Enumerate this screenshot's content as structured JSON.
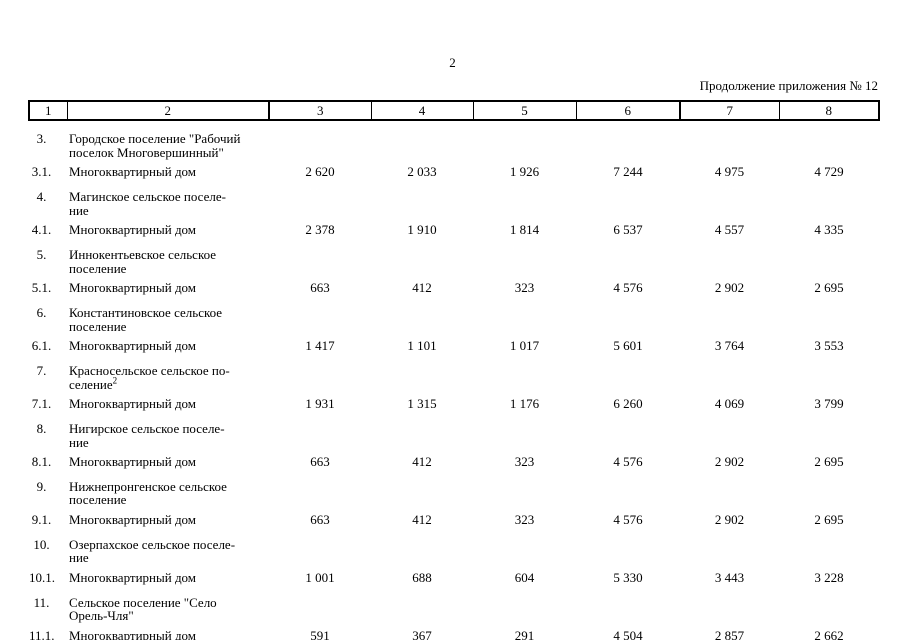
{
  "page": {
    "number": "2",
    "continuation_note": "Продолжение приложения № 12"
  },
  "table": {
    "column_headers": [
      "1",
      "2",
      "3",
      "4",
      "5",
      "6",
      "7",
      "8"
    ],
    "rows": [
      {
        "type": "section",
        "num": "3.",
        "name_lines": [
          "Городское поселение \"Рабочий",
          "поселок Многовершинный\""
        ]
      },
      {
        "type": "data",
        "num": "3.1.",
        "name_lines": [
          "Многоквартирный дом"
        ],
        "values": [
          "2 620",
          "2 033",
          "1 926",
          "7 244",
          "4 975",
          "4 729"
        ]
      },
      {
        "type": "section",
        "num": "4.",
        "name_lines": [
          "Магинское сельское поселе-",
          "ние"
        ]
      },
      {
        "type": "data",
        "num": "4.1.",
        "name_lines": [
          "Многоквартирный дом"
        ],
        "values": [
          "2 378",
          "1 910",
          "1 814",
          "6 537",
          "4 557",
          "4 335"
        ]
      },
      {
        "type": "section",
        "num": "5.",
        "name_lines": [
          "Иннокентьевское сельское",
          "поселение"
        ]
      },
      {
        "type": "data",
        "num": "5.1.",
        "name_lines": [
          "Многоквартирный дом"
        ],
        "values": [
          "663",
          "412",
          "323",
          "4 576",
          "2 902",
          "2 695"
        ]
      },
      {
        "type": "section",
        "num": "6.",
        "name_lines": [
          "Константиновское сельское",
          "поселение"
        ]
      },
      {
        "type": "data",
        "num": "6.1.",
        "name_lines": [
          "Многоквартирный дом"
        ],
        "values": [
          "1 417",
          "1 101",
          "1 017",
          "5 601",
          "3 764",
          "3 553"
        ]
      },
      {
        "type": "section",
        "num": "7.",
        "name_lines": [
          "Красносельское сельское по-",
          "селение"
        ],
        "name_superscript": "2"
      },
      {
        "type": "data",
        "num": "7.1.",
        "name_lines": [
          "Многоквартирный дом"
        ],
        "values": [
          "1 931",
          "1 315",
          "1 176",
          "6 260",
          "4 069",
          "3 799"
        ]
      },
      {
        "type": "section",
        "num": "8.",
        "name_lines": [
          "Нигирское сельское поселе-",
          "ние"
        ]
      },
      {
        "type": "data",
        "num": "8.1.",
        "name_lines": [
          "Многоквартирный дом"
        ],
        "values": [
          "663",
          "412",
          "323",
          "4 576",
          "2 902",
          "2 695"
        ]
      },
      {
        "type": "section",
        "num": "9.",
        "name_lines": [
          "Нижнепронгенское сельское",
          "поселение"
        ]
      },
      {
        "type": "data",
        "num": "9.1.",
        "name_lines": [
          "Многоквартирный дом"
        ],
        "values": [
          "663",
          "412",
          "323",
          "4 576",
          "2 902",
          "2 695"
        ]
      },
      {
        "type": "section",
        "num": "10.",
        "name_lines": [
          "Озерпахское сельское поселе-",
          "ние"
        ]
      },
      {
        "type": "data",
        "num": "10.1.",
        "name_lines": [
          "Многоквартирный дом"
        ],
        "values": [
          "1 001",
          "688",
          "604",
          "5 330",
          "3 443",
          "3 228"
        ]
      },
      {
        "type": "section",
        "num": "11.",
        "name_lines": [
          "Сельское поселение \"Село",
          "Орель-Чля\""
        ]
      },
      {
        "type": "data",
        "num": "11.1.",
        "name_lines": [
          "Многоквартирный дом"
        ],
        "values": [
          "591",
          "367",
          "291",
          "4 504",
          "2 857",
          "2 662"
        ]
      }
    ]
  }
}
